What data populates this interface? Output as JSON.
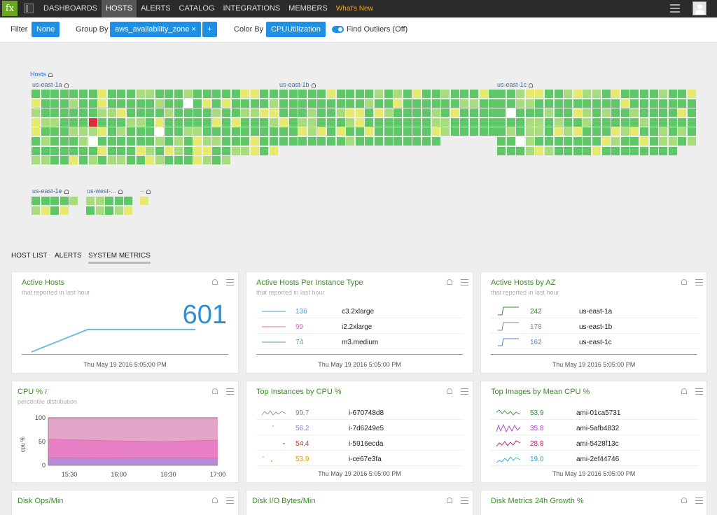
{
  "nav": {
    "logo": "fx",
    "tabs": [
      "DASHBOARDS",
      "HOSTS",
      "ALERTS",
      "CATALOG",
      "INTEGRATIONS",
      "MEMBERS",
      "What's New"
    ],
    "active_tab": "HOSTS"
  },
  "toolbar": {
    "filter_label": "Filter",
    "filter_value": "None",
    "groupby_label": "Group By",
    "groupby_value": "aws_availability_zone ×",
    "add_label": "+",
    "colorby_label": "Color By",
    "colorby_value": "CPUUtilization",
    "outliers_label": "Find Outliers (Off)"
  },
  "heatmap": {
    "root_label": "Hosts",
    "groups": [
      {
        "label": "us-east-1a",
        "cols": 26,
        "rows": 8,
        "last_row": 21
      },
      {
        "label": "us-east-1b",
        "cols": 23,
        "rows": 6,
        "last_row": 17
      },
      {
        "label": "us-east-1c",
        "cols": 21,
        "rows": 7,
        "last_row": 19
      },
      {
        "label": "us-east-1e",
        "cols": 5,
        "rows": 2,
        "last_row": 4
      },
      {
        "label": "us-west-...",
        "cols": 5,
        "rows": 2,
        "last_row": 5
      },
      {
        "label": "--",
        "cols": 1,
        "rows": 1,
        "last_row": 1
      }
    ],
    "colors": {
      "green": "#5fc768",
      "light": "#a8dc7c",
      "yellow": "#e6ea6e",
      "white": "#ffffff",
      "red": "#e02b3a"
    }
  },
  "subtabs": [
    "HOST LIST",
    "ALERTS",
    "SYSTEM METRICS"
  ],
  "panels": {
    "active_hosts": {
      "title": "Active Hosts",
      "subtitle": "that reported in last hour",
      "value": "601",
      "footer": "Thu May 19 2016 5:05:00 PM"
    },
    "per_instance": {
      "title": "Active Hosts Per Instance Type",
      "subtitle": "that reported in last hour",
      "rows": [
        {
          "value": "136",
          "name": "c3.2xlarge",
          "color": "#3da3d6"
        },
        {
          "value": "99",
          "name": "i2.2xlarge",
          "color": "#e86ac4"
        },
        {
          "value": "74",
          "name": "m3.medium",
          "color": "#5a8fb4"
        }
      ],
      "footer": "Thu May 19 2016 5:05:00 PM"
    },
    "by_az": {
      "title": "Active Hosts by AZ",
      "subtitle": "that reported in last hour",
      "rows": [
        {
          "value": "242",
          "name": "us-east-1a",
          "color": "#2e8b2e"
        },
        {
          "value": "178",
          "name": "us-east-1b",
          "color": "#8a7fb0"
        },
        {
          "value": "162",
          "name": "us-east-1c",
          "color": "#4f86c6"
        }
      ],
      "footer": "Thu May 19 2016 5:05:00 PM"
    },
    "cpu": {
      "title": "CPU %",
      "info": "i",
      "subtitle": "percentile distribution",
      "ylabel": "cpu %"
    },
    "top_instances": {
      "title": "Top Instances by CPU %",
      "rows": [
        {
          "value": "99.7",
          "name": "i-670748d8",
          "color": "#888888"
        },
        {
          "value": "56.2",
          "name": "i-7d6249e5",
          "color": "#7b7fb8"
        },
        {
          "value": "54.4",
          "name": "i-5916ecda",
          "color": "#c0392b"
        },
        {
          "value": "53.9",
          "name": "i-ce67e3fa",
          "color": "#e09a00"
        }
      ],
      "footer": "Thu May 19 2016 5:05:00 PM"
    },
    "top_images": {
      "title": "Top Images by Mean CPU %",
      "rows": [
        {
          "value": "53.9",
          "name": "ami-01ca5731",
          "color": "#2e8b2e"
        },
        {
          "value": "35.8",
          "name": "ami-5afb4832",
          "color": "#b23cc8"
        },
        {
          "value": "28.8",
          "name": "ami-5428f13c",
          "color": "#c0186c"
        },
        {
          "value": "19.0",
          "name": "ami-2ef44746",
          "color": "#2ca3d6"
        }
      ],
      "footer": "Thu May 19 2016 5:05:00 PM"
    },
    "disk_ops": {
      "title": "Disk Ops/Min"
    },
    "disk_io": {
      "title": "Disk I/O Bytes/Min"
    },
    "disk_growth": {
      "title": "Disk Metrics 24h Growth %"
    }
  },
  "chart_data": {
    "type": "area",
    "x": [
      "15:30",
      "16:00",
      "16:30",
      "17:00"
    ],
    "ylabel": "cpu %",
    "ylim": [
      0,
      100
    ],
    "yticks": [
      0,
      50,
      100
    ],
    "series": [
      {
        "values": [
          100,
          100,
          100,
          100
        ],
        "color": "#e3a6c9"
      },
      {
        "values": [
          55,
          52,
          50,
          53
        ],
        "color": "#e87fc4"
      },
      {
        "values": [
          16,
          15,
          16,
          15
        ],
        "color": "#b88ad4"
      }
    ]
  }
}
